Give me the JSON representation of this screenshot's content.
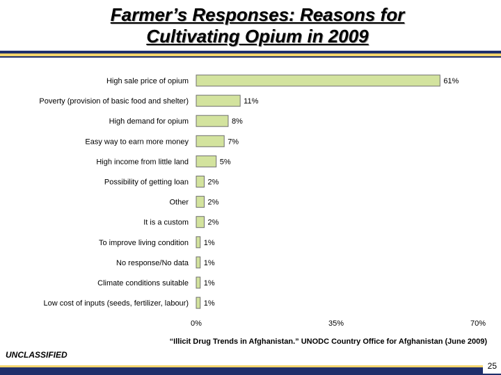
{
  "slide": {
    "title_line1": "Farmer’s Responses:  Reasons for",
    "title_line2": "Cultivating Opium in 2009",
    "source": "“Illicit Drug Trends in Afghanistan.”  UNODC Country Office for Afghanistan (June 2009)",
    "classification": "UNCLASSIFIED",
    "page_number": "25"
  },
  "colors": {
    "bar_fill": "#d3e39e",
    "bar_stroke": "#6f6f6f",
    "navy": "#1f2f6b",
    "yellow": "#f3d46b"
  },
  "chart_data": {
    "type": "bar",
    "orientation": "horizontal",
    "categories": [
      "High sale price of opium",
      "Poverty (provision of basic food and shelter)",
      "High demand for opium",
      "Easy way to earn more money",
      "High income from little land",
      "Possibility of getting loan",
      "Other",
      "It is a custom",
      "To improve living condition",
      "No response/No data",
      "Climate conditions suitable",
      "Low cost of inputs (seeds, fertilizer, labour)"
    ],
    "values": [
      61,
      11,
      8,
      7,
      5,
      2,
      2,
      2,
      1,
      1,
      1,
      1
    ],
    "value_labels": [
      "61%",
      "11%",
      "8%",
      "7%",
      "5%",
      "2%",
      "2%",
      "2%",
      "1%",
      "1%",
      "1%",
      "1%"
    ],
    "xlim": [
      0,
      70
    ],
    "xticks": [
      0,
      35,
      70
    ],
    "xtick_labels": [
      "0%",
      "35%",
      "70%"
    ],
    "grid": false
  }
}
